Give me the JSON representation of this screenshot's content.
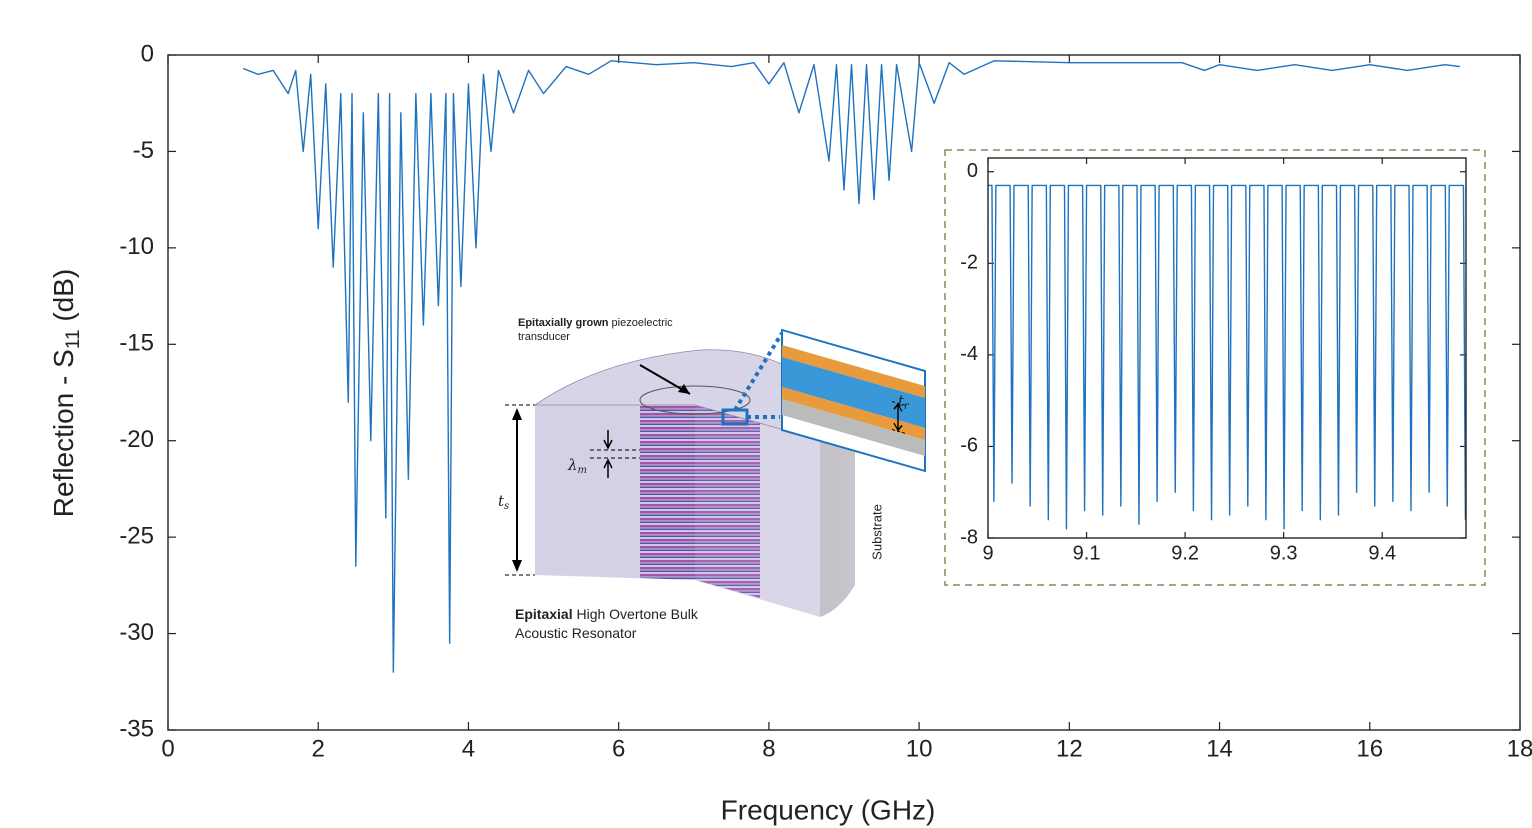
{
  "chart_data": [
    {
      "type": "line",
      "xlabel": "Frequency (GHz)",
      "ylabel": {
        "text": "Reflection - S",
        "subscript": "11",
        "suffix": " (dB)"
      },
      "xlim": [
        0,
        18
      ],
      "ylim": [
        -35,
        0
      ],
      "xticks": [
        0,
        2,
        4,
        6,
        8,
        10,
        12,
        14,
        16,
        18
      ],
      "yticks": [
        0,
        -5,
        -10,
        -15,
        -20,
        -25,
        -30,
        -35
      ],
      "grid": false,
      "x": [
        1.0,
        1.2,
        1.4,
        1.6,
        1.7,
        1.8,
        1.9,
        2.0,
        2.1,
        2.2,
        2.3,
        2.4,
        2.45,
        2.5,
        2.6,
        2.7,
        2.8,
        2.9,
        2.95,
        3.0,
        3.1,
        3.2,
        3.3,
        3.4,
        3.5,
        3.6,
        3.7,
        3.75,
        3.8,
        3.9,
        4.0,
        4.1,
        4.2,
        4.3,
        4.4,
        4.6,
        4.8,
        5.0,
        5.3,
        5.6,
        5.9,
        6.5,
        7.0,
        7.5,
        7.8,
        8.0,
        8.2,
        8.4,
        8.6,
        8.8,
        8.9,
        9.0,
        9.1,
        9.2,
        9.3,
        9.4,
        9.5,
        9.6,
        9.7,
        9.9,
        10.0,
        10.2,
        10.4,
        10.6,
        11.0,
        12.0,
        13.0,
        13.5,
        13.8,
        14.0,
        14.5,
        15.0,
        15.5,
        16.0,
        16.5,
        17.0,
        17.2
      ],
      "series": [
        {
          "color": "#1f72bf",
          "values": [
            -0.7,
            -1.0,
            -0.8,
            -2,
            -0.8,
            -5,
            -1,
            -9,
            -1.5,
            -11,
            -2,
            -18,
            -2,
            -26.5,
            -3,
            -20,
            -2,
            -24,
            -2,
            -32,
            -3,
            -22,
            -2,
            -14,
            -2,
            -13,
            -2,
            -30.5,
            -2,
            -12,
            -1.5,
            -10,
            -1,
            -5,
            -0.8,
            -3,
            -0.8,
            -2,
            -0.6,
            -1,
            -0.3,
            -0.5,
            -0.4,
            -0.6,
            -0.4,
            -1.5,
            -0.4,
            -3,
            -0.5,
            -5.5,
            -0.5,
            -7,
            -0.5,
            -7.7,
            -0.5,
            -7.5,
            -0.5,
            -6.5,
            -0.5,
            -5,
            -0.4,
            -2.5,
            -0.4,
            -1,
            -0.3,
            -0.4,
            -0.4,
            -0.4,
            -0.8,
            -0.5,
            -0.8,
            -0.5,
            -0.8,
            -0.5,
            -0.8,
            -0.5,
            -0.6
          ]
        }
      ]
    },
    {
      "type": "line",
      "xlim": [
        9,
        9.485
      ],
      "ylim": [
        -8,
        0.3
      ],
      "xticks": [
        9,
        9.1,
        9.2,
        9.3,
        9.4
      ],
      "yticks": [
        0,
        -2,
        -4,
        -6,
        -8
      ],
      "grid": false,
      "x": [
        9.0,
        9.004,
        9.006,
        9.008,
        9.0224,
        9.0244,
        9.0264,
        9.0408,
        9.0428,
        9.0448,
        9.0592,
        9.0612,
        9.0632,
        9.0776,
        9.0796,
        9.0816,
        9.096,
        9.098,
        9.1,
        9.1144,
        9.1164,
        9.1184,
        9.1328,
        9.1348,
        9.1368,
        9.1512,
        9.1532,
        9.1552,
        9.1696,
        9.1716,
        9.1736,
        9.188,
        9.19,
        9.192,
        9.2064,
        9.2084,
        9.2104,
        9.2248,
        9.2268,
        9.2288,
        9.2432,
        9.2452,
        9.2472,
        9.2616,
        9.2636,
        9.2656,
        9.28,
        9.282,
        9.284,
        9.2984,
        9.3004,
        9.3024,
        9.3168,
        9.3188,
        9.3208,
        9.3352,
        9.3372,
        9.3392,
        9.3536,
        9.3556,
        9.3576,
        9.372,
        9.374,
        9.376,
        9.3904,
        9.3924,
        9.3944,
        9.4088,
        9.4108,
        9.4128,
        9.4272,
        9.4292,
        9.4312,
        9.4456,
        9.4476,
        9.4496,
        9.464,
        9.466,
        9.468,
        9.4824,
        9.4844
      ],
      "series": [
        {
          "color": "#1f72bf",
          "values": [
            -0.3,
            -0.3,
            -7.2,
            -0.3,
            -0.3,
            -6.8,
            -0.3,
            -0.3,
            -7.3,
            -0.3,
            -0.3,
            -7.6,
            -0.3,
            -0.3,
            -7.8,
            -0.3,
            -0.3,
            -7.4,
            -0.3,
            -0.3,
            -7.5,
            -0.3,
            -0.3,
            -7.3,
            -0.3,
            -0.3,
            -7.7,
            -0.3,
            -0.3,
            -7.2,
            -0.3,
            -0.3,
            -7.0,
            -0.3,
            -0.3,
            -7.4,
            -0.3,
            -0.3,
            -7.6,
            -0.3,
            -0.3,
            -7.5,
            -0.3,
            -0.3,
            -7.3,
            -0.3,
            -0.3,
            -7.6,
            -0.3,
            -0.3,
            -7.8,
            -0.3,
            -0.3,
            -7.4,
            -0.3,
            -0.3,
            -7.6,
            -0.3,
            -0.3,
            -7.5,
            -0.3,
            -0.3,
            -7.0,
            -0.3,
            -0.3,
            -7.3,
            -0.3,
            -0.3,
            -7.2,
            -0.3,
            -0.3,
            -7.4,
            -0.3,
            -0.3,
            -7.0,
            -0.3,
            -0.3,
            -7.3,
            -0.3,
            -0.3,
            -7.6
          ]
        }
      ]
    }
  ],
  "diagram": {
    "transducer": {
      "bold": "Epitaxially grown",
      "lines": [
        "piezoelectric",
        "transducer"
      ]
    },
    "resonator": {
      "bold": "Epitaxial",
      "lines": [
        "High Overtone Bulk",
        "Acoustic Resonator"
      ]
    },
    "substrate": "Substrate",
    "lambda": {
      "symbol": "λ",
      "sub": "m"
    },
    "ts": {
      "symbol": "t",
      "sub": "s"
    },
    "tr": {
      "symbol": "t",
      "sub": "r"
    }
  }
}
